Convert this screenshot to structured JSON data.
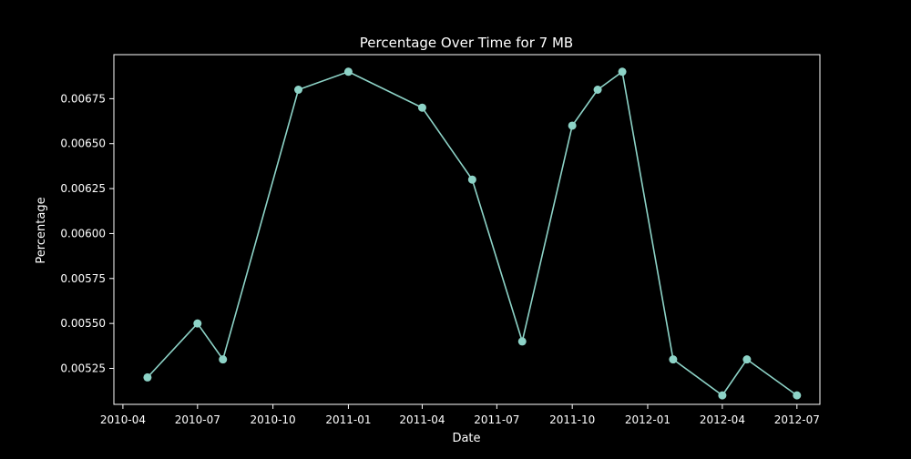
{
  "chart_data": {
    "type": "line",
    "title": "Percentage Over Time for 7 MB",
    "xlabel": "Date",
    "ylabel": "Percentage",
    "x_tick_labels": [
      "2010-04",
      "2010-07",
      "2010-10",
      "2011-01",
      "2011-04",
      "2011-07",
      "2011-10",
      "2012-01",
      "2012-04",
      "2012-07"
    ],
    "y_tick_labels": [
      "0.00525",
      "0.00550",
      "0.00575",
      "0.00600",
      "0.00625",
      "0.00650",
      "0.00675"
    ],
    "ylim": [
      0.00505,
      0.006995
    ],
    "xlim": [
      "2010-03-21",
      "2012-07-29"
    ],
    "grid": false,
    "legend": "none",
    "series": [
      {
        "color": "#8dd3c7",
        "marker": "circle",
        "points": [
          {
            "x": "2010-05-01",
            "y": 0.0052
          },
          {
            "x": "2010-07-01",
            "y": 0.0055
          },
          {
            "x": "2010-08-01",
            "y": 0.0053
          },
          {
            "x": "2010-11-01",
            "y": 0.0068
          },
          {
            "x": "2011-01-01",
            "y": 0.0069
          },
          {
            "x": "2011-04-01",
            "y": 0.0067
          },
          {
            "x": "2011-06-01",
            "y": 0.0063
          },
          {
            "x": "2011-08-01",
            "y": 0.0054
          },
          {
            "x": "2011-10-01",
            "y": 0.0066
          },
          {
            "x": "2011-11-01",
            "y": 0.0068
          },
          {
            "x": "2011-12-01",
            "y": 0.0069
          },
          {
            "x": "2012-02-01",
            "y": 0.0053
          },
          {
            "x": "2012-04-01",
            "y": 0.0051
          },
          {
            "x": "2012-05-01",
            "y": 0.0053
          },
          {
            "x": "2012-07-01",
            "y": 0.0051
          }
        ]
      }
    ]
  },
  "colors": {
    "background": "#000000",
    "axes": "#ffffff",
    "text": "#ffffff",
    "line": "#8dd3c7"
  }
}
